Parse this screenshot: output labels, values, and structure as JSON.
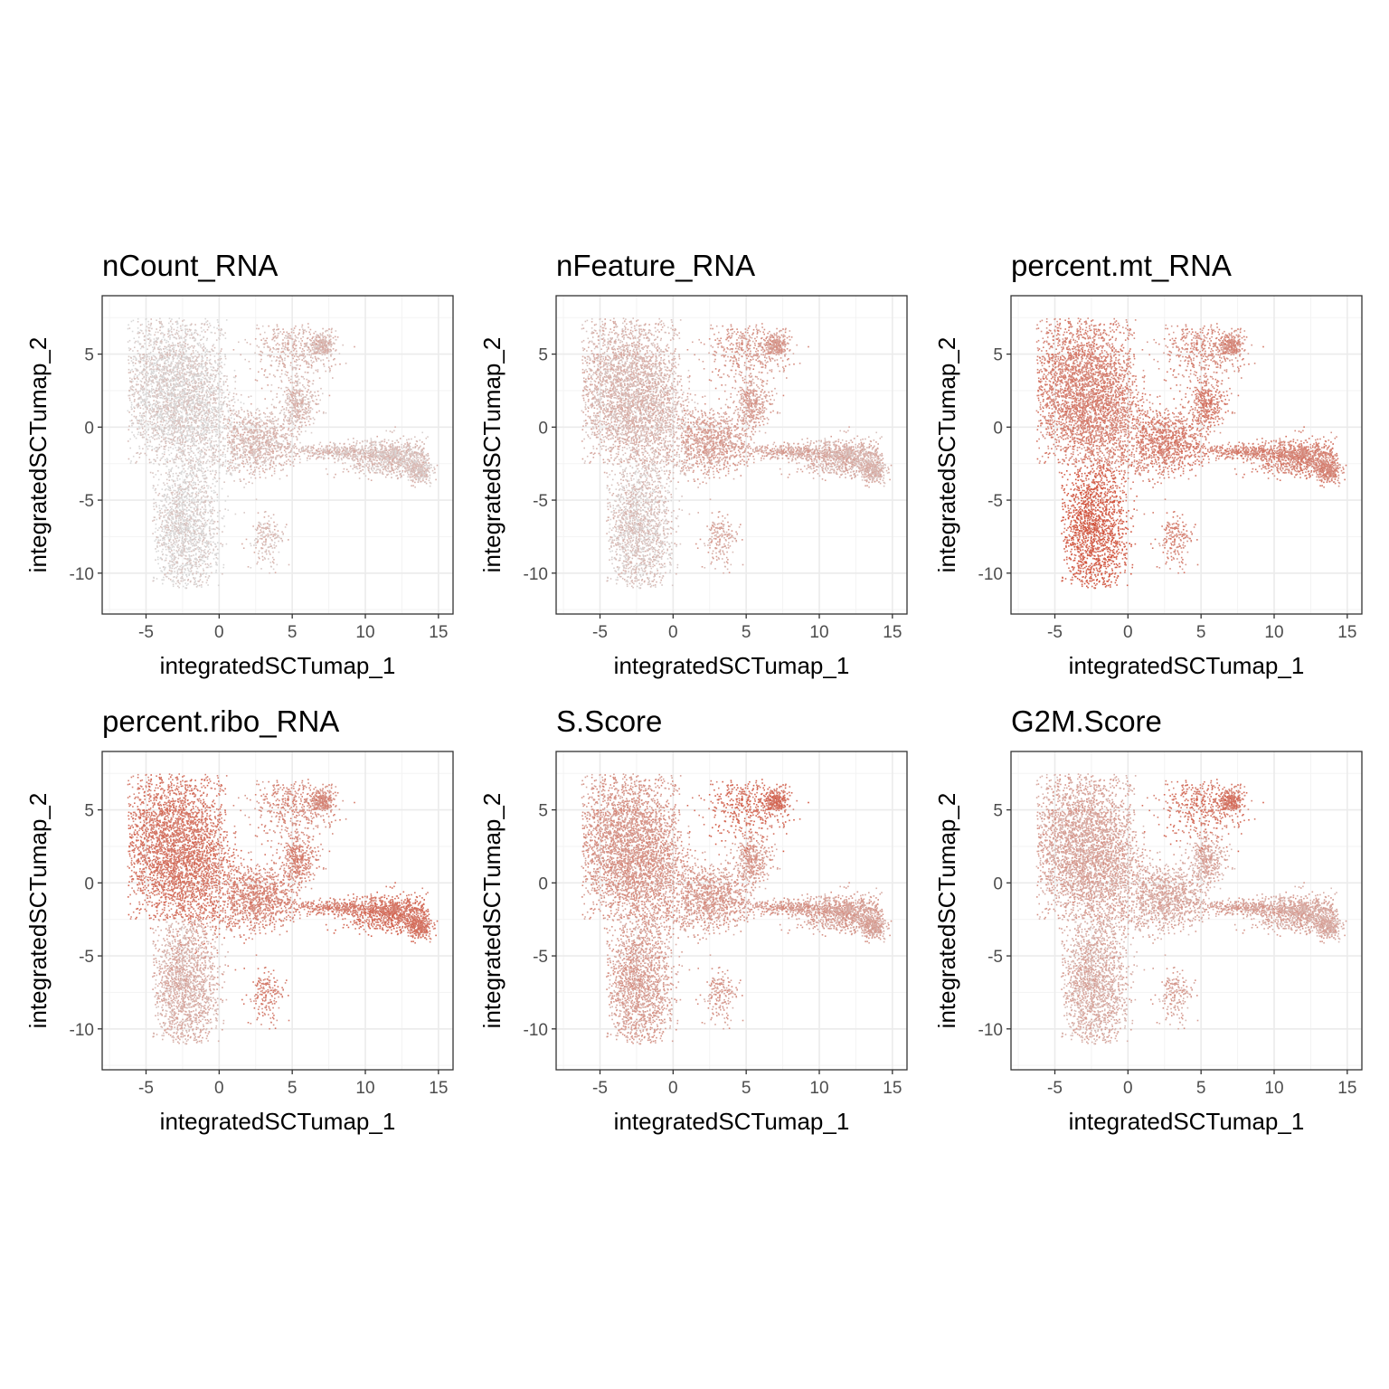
{
  "chart_data": [
    {
      "type": "scatter",
      "title": "nCount_RNA",
      "xlabel": "integratedSCTumap_1",
      "ylabel": "integratedSCTumap_2",
      "xlim": [
        -8,
        16
      ],
      "ylim": [
        -12.8,
        9
      ],
      "xticks": [
        -5,
        0,
        5,
        10,
        15
      ],
      "yticks": [
        -10,
        -5,
        0,
        5
      ],
      "color_scale": [
        "#d9d9d9",
        "#d24b33"
      ],
      "expression": {
        "main": 0.08,
        "upper_right": 0.25,
        "middle_ring": 0.22,
        "tail": 0.18,
        "lower_left": 0.05,
        "stem": 0.2
      },
      "grid": true
    },
    {
      "type": "scatter",
      "title": "nFeature_RNA",
      "xlabel": "integratedSCTumap_1",
      "ylabel": "integratedSCTumap_2",
      "xlim": [
        -8,
        16
      ],
      "ylim": [
        -12.8,
        9
      ],
      "xticks": [
        -5,
        0,
        5,
        10,
        15
      ],
      "yticks": [
        -10,
        -5,
        0,
        5
      ],
      "color_scale": [
        "#d9d9d9",
        "#d24b33"
      ],
      "expression": {
        "main": 0.25,
        "upper_right": 0.45,
        "middle_ring": 0.4,
        "tail": 0.28,
        "lower_left": 0.15,
        "stem": 0.35
      },
      "grid": true
    },
    {
      "type": "scatter",
      "title": "percent.mt_RNA",
      "xlabel": "integratedSCTumap_1",
      "ylabel": "integratedSCTumap_2",
      "xlim": [
        -8,
        16
      ],
      "ylim": [
        -12.8,
        9
      ],
      "xticks": [
        -5,
        0,
        5,
        10,
        15
      ],
      "yticks": [
        -10,
        -5,
        0,
        5
      ],
      "color_scale": [
        "#d9d9d9",
        "#d24b33"
      ],
      "expression": {
        "main": 0.62,
        "upper_right": 0.55,
        "middle_ring": 0.65,
        "tail": 0.6,
        "lower_left": 0.85,
        "stem": 0.6
      },
      "grid": true
    },
    {
      "type": "scatter",
      "title": "percent.ribo_RNA",
      "xlabel": "integratedSCTumap_1",
      "ylabel": "integratedSCTumap_2",
      "xlim": [
        -8,
        16
      ],
      "ylim": [
        -12.8,
        9
      ],
      "xticks": [
        -5,
        0,
        5,
        10,
        15
      ],
      "yticks": [
        -10,
        -5,
        0,
        5
      ],
      "color_scale": [
        "#d9d9d9",
        "#d24b33"
      ],
      "expression": {
        "main": 0.7,
        "upper_right": 0.55,
        "middle_ring": 0.6,
        "tail": 0.72,
        "lower_left": 0.3,
        "stem": 0.62
      },
      "grid": true
    },
    {
      "type": "scatter",
      "title": "S.Score",
      "xlabel": "integratedSCTumap_1",
      "ylabel": "integratedSCTumap_2",
      "xlim": [
        -8,
        16
      ],
      "ylim": [
        -12.8,
        9
      ],
      "xticks": [
        -5,
        0,
        5,
        10,
        15
      ],
      "yticks": [
        -10,
        -5,
        0,
        5
      ],
      "color_scale": [
        "#d9d9d9",
        "#d24b33"
      ],
      "expression": {
        "main": 0.48,
        "upper_right": 0.75,
        "middle_ring": 0.45,
        "tail": 0.4,
        "lower_left": 0.42,
        "stem": 0.45
      },
      "grid": true
    },
    {
      "type": "scatter",
      "title": "G2M.Score",
      "xlabel": "integratedSCTumap_1",
      "ylabel": "integratedSCTumap_2",
      "xlim": [
        -8,
        16
      ],
      "ylim": [
        -12.8,
        9
      ],
      "xticks": [
        -5,
        0,
        5,
        10,
        15
      ],
      "yticks": [
        -10,
        -5,
        0,
        5
      ],
      "color_scale": [
        "#d9d9d9",
        "#d24b33"
      ],
      "expression": {
        "main": 0.38,
        "upper_right": 0.7,
        "middle_ring": 0.35,
        "tail": 0.35,
        "lower_left": 0.32,
        "stem": 0.4
      },
      "grid": true
    }
  ]
}
